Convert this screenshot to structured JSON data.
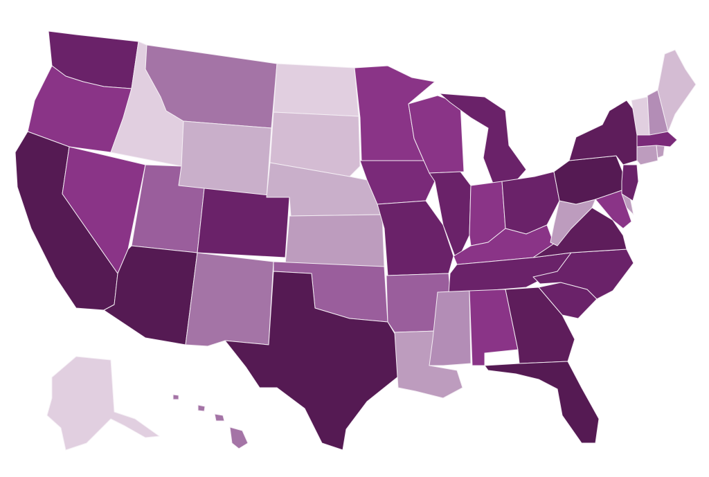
{
  "map": {
    "type": "choropleth",
    "region": "United States",
    "levels": {
      "1": "#e1cfe0",
      "2": "#d4bcd3",
      "3": "#c9afca",
      "4": "#bd9cbe",
      "5": "#b38db6",
      "6": "#a474a6",
      "7": "#9a5e9c",
      "8": "#8a3487",
      "9": "#7a2a79",
      "10": "#6a2269",
      "11": "#5e1d5b",
      "12": "#551a53"
    },
    "states": {
      "WA": 10,
      "OR": 8,
      "CA": 12,
      "ID": 1,
      "NV": 8,
      "MT": 6,
      "WY": 3,
      "UT": 7,
      "AZ": 12,
      "CO": 10,
      "NM": 6,
      "ND": 1,
      "SD": 2,
      "NE": 3,
      "KS": 4,
      "OK": 7,
      "TX": 12,
      "MN": 8,
      "IA": 9,
      "MO": 10,
      "AR": 7,
      "LA": 4,
      "WI": 8,
      "IL": 10,
      "MI": 10,
      "IN": 8,
      "OH": 10,
      "KY": 8,
      "TN": 10,
      "MS": 5,
      "AL": 8,
      "GA": 11,
      "FL": 12,
      "SC": 10,
      "NC": 10,
      "VA": 11,
      "WV": 4,
      "PA": 12,
      "NY": 11,
      "MD": 8,
      "DE": 4,
      "NJ": 10,
      "CT": 4,
      "RI": 4,
      "MA": 9,
      "VT": 1,
      "NH": 5,
      "ME": 2,
      "AK": 1,
      "HI": 6
    }
  }
}
